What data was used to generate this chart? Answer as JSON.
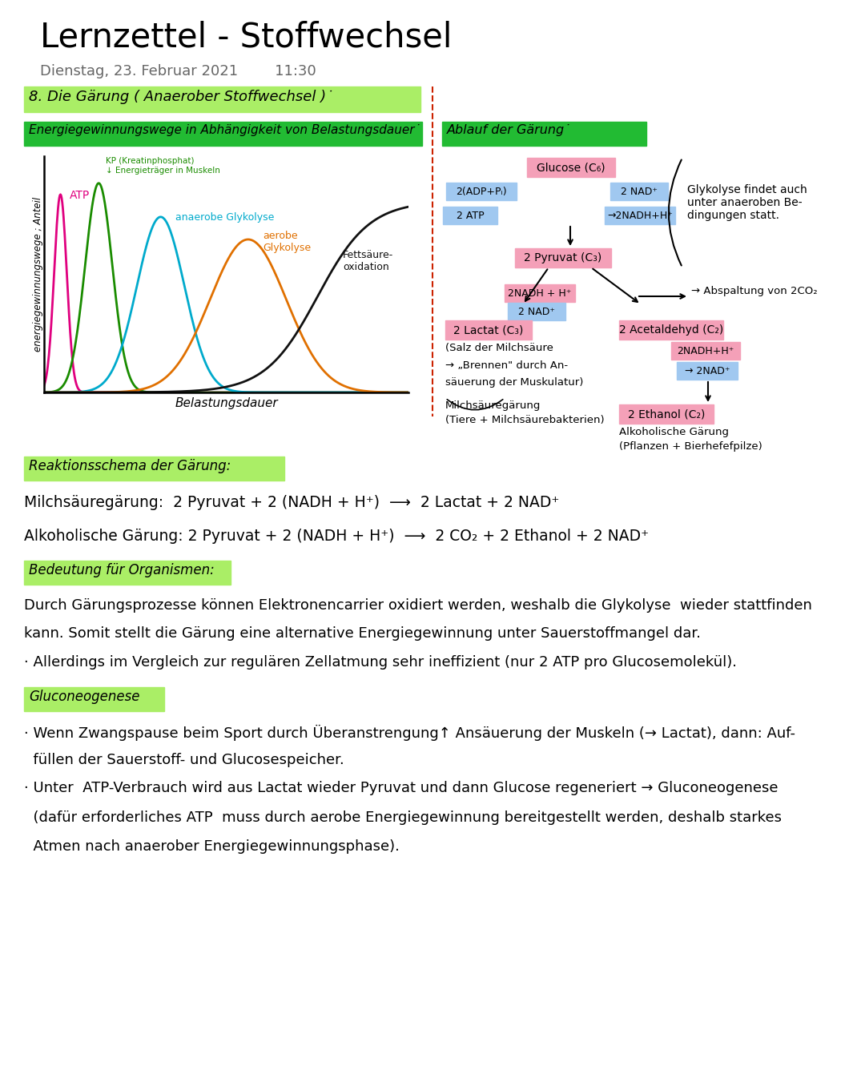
{
  "title": "Lernzettel - Stoffwechsel",
  "subtitle": "Dienstag, 23. Februar 2021        11:30",
  "bg_color": "#ffffff",
  "section1_text": "8. Die Gärung ( Anaerober Stoffwechsel )˙",
  "section1_bg": "#aaee66",
  "header_left": "Energiegewinnungswege in Abhängigkeit von Belastungsdauer˙",
  "header_right": "Ablauf der Gärung˙",
  "header_bg": "#22bb33",
  "dashed_line_color": "#cc2200",
  "chart_ylabel": "energiegewinnungswege ; Anteil",
  "chart_xlabel": "Belastungsdauer",
  "atp_color": "#e0007f",
  "kp_color": "#1a8c00",
  "ana_color": "#00aacc",
  "aer_color": "#e07000",
  "fett_color": "#111111",
  "pink_box": "#f4a0b8",
  "blue_box": "#a0c8f0",
  "react_bg": "#aaee66",
  "bedeutung_bg": "#aaee66",
  "gluconeo_bg": "#aaee66"
}
